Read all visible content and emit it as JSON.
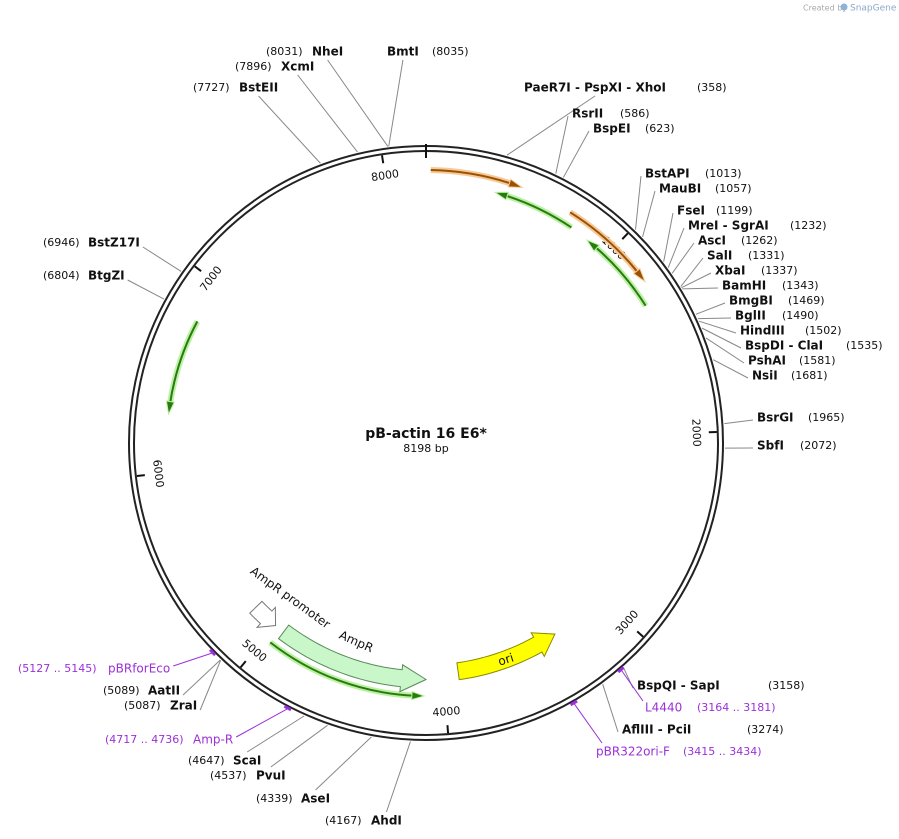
{
  "header": {
    "created_by": "Created by",
    "brand": "SnapGene"
  },
  "map": {
    "name": "pB-actin 16 E6*",
    "length": "8198 bp",
    "ticks": [
      "1000",
      "2000",
      "3000",
      "4000",
      "5000",
      "6000",
      "7000",
      "8000"
    ]
  },
  "sites": [
    {
      "name": "NheI",
      "position": "(8031)"
    },
    {
      "name": "BmtI",
      "position": "(8035)"
    },
    {
      "name": "XcmI",
      "position": "(7896)"
    },
    {
      "name": "BstEII",
      "position": "(7727)"
    },
    {
      "name": "PaeR7I - PspXI - XhoI",
      "position": "(358)"
    },
    {
      "name": "RsrII",
      "position": "(586)"
    },
    {
      "name": "BspEI",
      "position": "(623)"
    },
    {
      "name": "BstAPI",
      "position": "(1013)"
    },
    {
      "name": "MauBI",
      "position": "(1057)"
    },
    {
      "name": "FseI",
      "position": "(1199)"
    },
    {
      "name": "MreI - SgrAI",
      "position": "(1232)"
    },
    {
      "name": "AscI",
      "position": "(1262)"
    },
    {
      "name": "SalI",
      "position": "(1331)"
    },
    {
      "name": "XbaI",
      "position": "(1337)"
    },
    {
      "name": "BamHI",
      "position": "(1343)"
    },
    {
      "name": "BmgBI",
      "position": "(1469)"
    },
    {
      "name": "BglII",
      "position": "(1490)"
    },
    {
      "name": "HindIII",
      "position": "(1502)"
    },
    {
      "name": "BspDI - ClaI",
      "position": "(1535)"
    },
    {
      "name": "PshAI",
      "position": "(1581)"
    },
    {
      "name": "NsiI",
      "position": "(1681)"
    },
    {
      "name": "BsrGI",
      "position": "(1965)"
    },
    {
      "name": "SbfI",
      "position": "(2072)"
    },
    {
      "name": "BspQI - SapI",
      "position": "(3158)"
    },
    {
      "name": "AflIII - PciI",
      "position": "(3274)"
    },
    {
      "name": "AhdI",
      "position": "(4167)"
    },
    {
      "name": "AseI",
      "position": "(4339)"
    },
    {
      "name": "PvuI",
      "position": "(4537)"
    },
    {
      "name": "ScaI",
      "position": "(4647)"
    },
    {
      "name": "ZraI",
      "position": "(5087)"
    },
    {
      "name": "AatII",
      "position": "(5089)"
    },
    {
      "name": "BtgZI",
      "position": "(6804)"
    },
    {
      "name": "BstZ17I",
      "position": "(6946)"
    }
  ],
  "primers": [
    {
      "name": "pBRforEco",
      "range": "(5127 .. 5145)"
    },
    {
      "name": "L4440",
      "range": "(3164 .. 3181)"
    },
    {
      "name": "pBR322ori-F",
      "range": "(3415 .. 3434)"
    },
    {
      "name": "Amp-R",
      "range": "(4717 .. 4736)"
    }
  ],
  "features": [
    "AmpR promoter",
    "AmpR",
    "ori"
  ]
}
